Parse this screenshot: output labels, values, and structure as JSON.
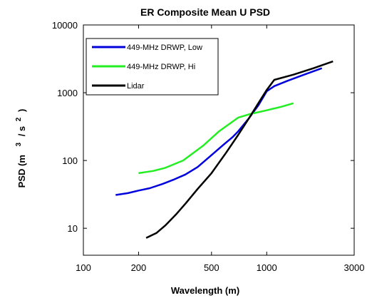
{
  "chart_data": {
    "type": "line",
    "title": "ER Composite Mean U PSD",
    "xlabel": "Wavelength (m)",
    "ylabel": "PSD (m³/s²)",
    "ylabel_parts": [
      "PSD (m",
      "3",
      "/ s",
      "2",
      ")"
    ],
    "x_scale": "log",
    "y_scale": "log",
    "xlim": [
      100,
      3000
    ],
    "ylim": [
      4,
      10000
    ],
    "x_ticks": [
      100,
      200,
      500,
      1000,
      3000
    ],
    "x_tick_labels": [
      "100",
      "200",
      "500",
      "1000",
      "3000"
    ],
    "y_ticks": [
      10,
      100,
      1000,
      10000
    ],
    "y_tick_labels": [
      "10",
      "100",
      "1000",
      "10000"
    ],
    "grid": false,
    "legend_position": "top-left",
    "series": [
      {
        "name": "449-MHz DRWP, Low",
        "color": "#0000dd",
        "points": [
          [
            150,
            31
          ],
          [
            175,
            33
          ],
          [
            200,
            36
          ],
          [
            230,
            39
          ],
          [
            270,
            45
          ],
          [
            310,
            52
          ],
          [
            360,
            62
          ],
          [
            420,
            80
          ],
          [
            500,
            120
          ],
          [
            580,
            170
          ],
          [
            650,
            220
          ],
          [
            700,
            270
          ],
          [
            800,
            420
          ],
          [
            900,
            650
          ],
          [
            1000,
            1050
          ],
          [
            1100,
            1250
          ],
          [
            1300,
            1500
          ],
          [
            1600,
            1850
          ],
          [
            2000,
            2300
          ]
        ]
      },
      {
        "name": "449-MHz DRWP, Hi",
        "color": "#22ee22",
        "points": [
          [
            200,
            65
          ],
          [
            240,
            70
          ],
          [
            280,
            78
          ],
          [
            350,
            100
          ],
          [
            450,
            165
          ],
          [
            550,
            270
          ],
          [
            700,
            430
          ],
          [
            800,
            480
          ],
          [
            1000,
            550
          ],
          [
            1200,
            620
          ],
          [
            1400,
            700
          ]
        ]
      },
      {
        "name": "Lidar",
        "color": "#000000",
        "points": [
          [
            220,
            7.2
          ],
          [
            250,
            8.5
          ],
          [
            280,
            11
          ],
          [
            320,
            16
          ],
          [
            360,
            23
          ],
          [
            420,
            38
          ],
          [
            500,
            65
          ],
          [
            600,
            130
          ],
          [
            700,
            240
          ],
          [
            800,
            420
          ],
          [
            900,
            700
          ],
          [
            1000,
            1100
          ],
          [
            1100,
            1550
          ],
          [
            1400,
            1850
          ],
          [
            1800,
            2300
          ],
          [
            2300,
            2900
          ]
        ]
      }
    ]
  }
}
